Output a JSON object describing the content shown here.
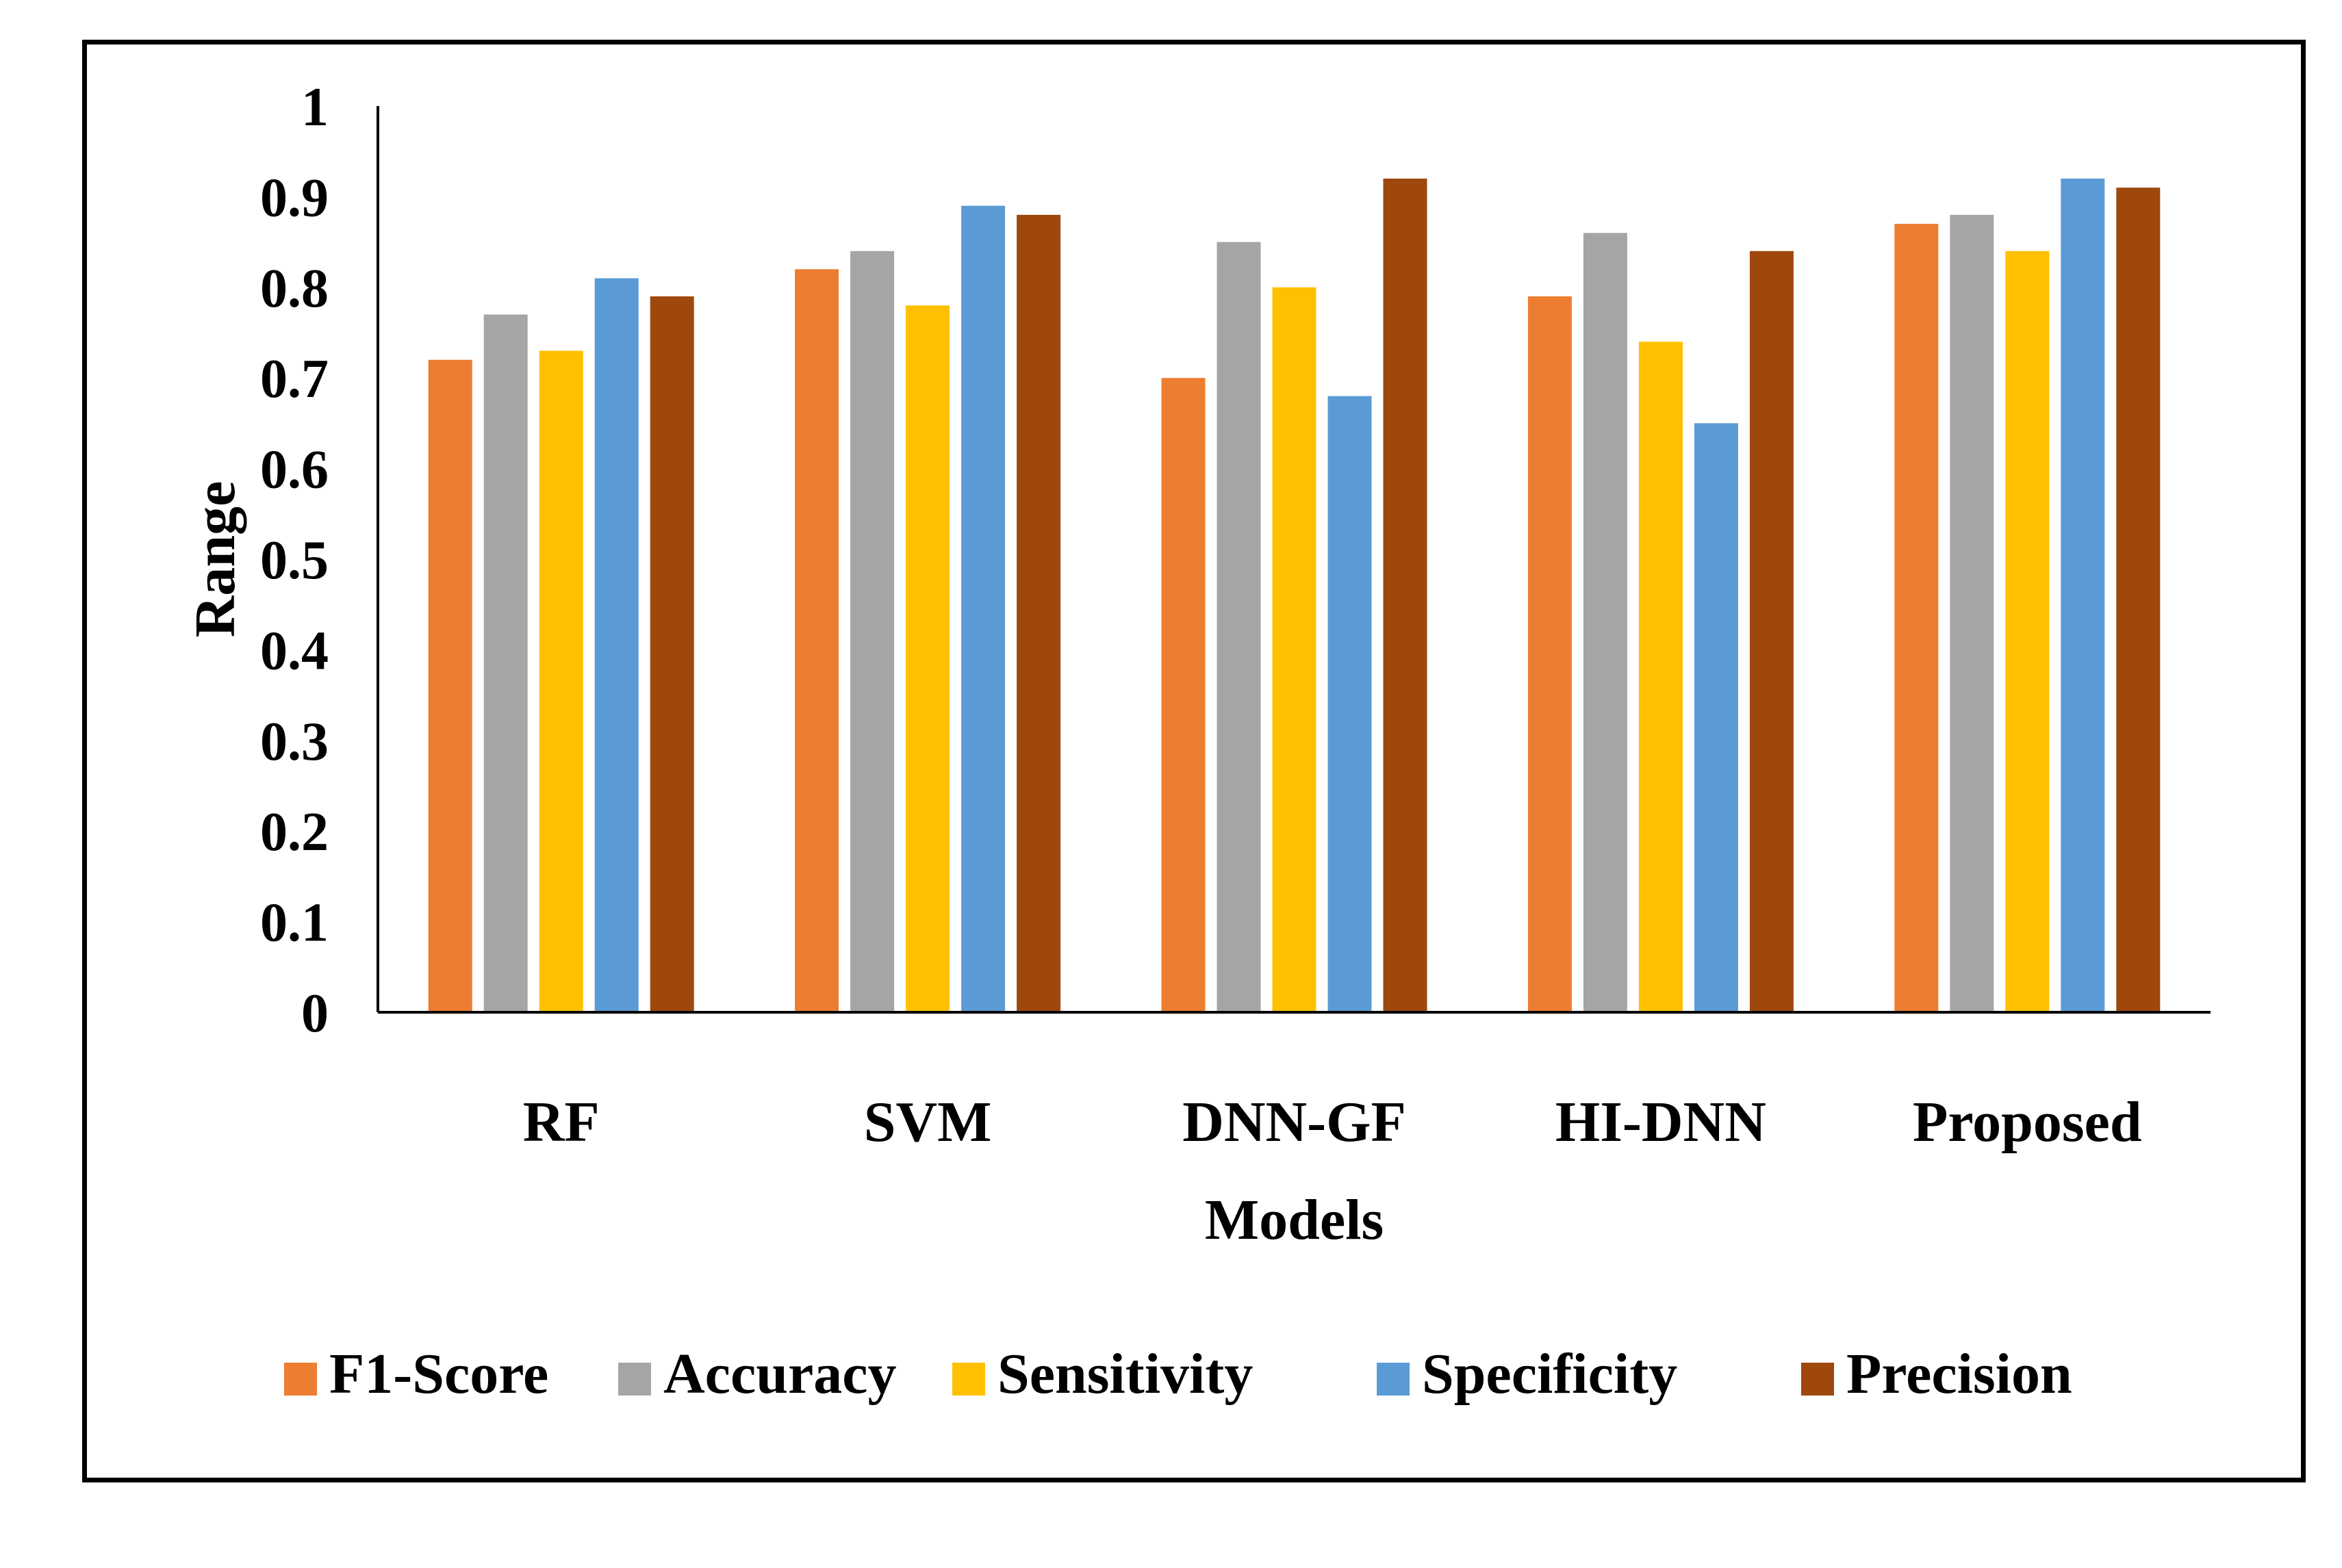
{
  "chart_data": {
    "type": "bar",
    "title": "",
    "xlabel": "Models",
    "ylabel": "Range",
    "ylim": [
      0,
      1
    ],
    "yticks": [
      "0",
      "0.1",
      "0.2",
      "0.3",
      "0.4",
      "0.5",
      "0.6",
      "0.7",
      "0.8",
      "0.9",
      "1"
    ],
    "categories": [
      "RF",
      "SVM",
      "DNN-GF",
      "HI-DNN",
      "Proposed"
    ],
    "series": [
      {
        "name": "F1-Score",
        "color": "#ED7D31",
        "values": [
          0.72,
          0.82,
          0.7,
          0.79,
          0.87
        ]
      },
      {
        "name": "Accuracy",
        "color": "#A5A5A5",
        "values": [
          0.77,
          0.84,
          0.85,
          0.86,
          0.88
        ]
      },
      {
        "name": "Sensitivity",
        "color": "#FFC000",
        "values": [
          0.73,
          0.78,
          0.8,
          0.74,
          0.84
        ]
      },
      {
        "name": "Specificity",
        "color": "#5B9BD5",
        "values": [
          0.81,
          0.89,
          0.68,
          0.65,
          0.92
        ]
      },
      {
        "name": "Precision",
        "color": "#9E480E",
        "values": [
          0.79,
          0.88,
          0.92,
          0.84,
          0.91
        ]
      }
    ],
    "grid": false,
    "legend_position": "bottom"
  }
}
